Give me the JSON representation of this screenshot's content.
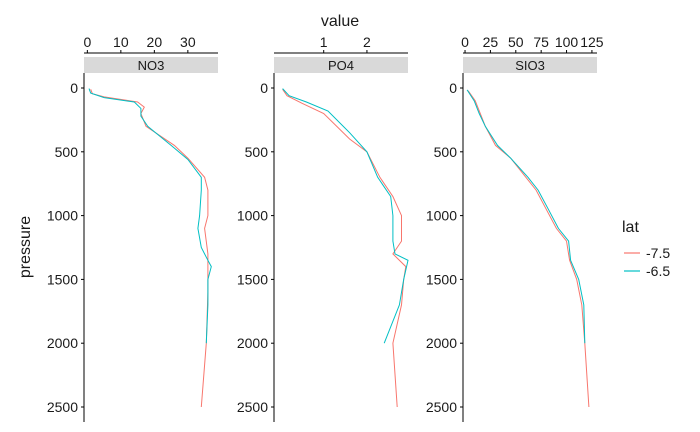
{
  "chart_data": {
    "type": "line",
    "title": "",
    "xlabel": "value",
    "ylabel": "pressure",
    "y_reversed": true,
    "ylim": [
      0,
      2500
    ],
    "yticks": [
      0,
      500,
      1000,
      1500,
      2000,
      2500
    ],
    "colors": {
      "-7.5": "#F8766D",
      "-6.5": "#00BFC4",
      "strip_bg": "#D9D9D9",
      "axis": "#000000"
    },
    "legend": {
      "title": "lat",
      "position": "right",
      "entries": [
        "-7.5",
        "-6.5"
      ]
    },
    "panels": [
      {
        "name": "NO3",
        "xlim": [
          -1,
          39
        ],
        "xticks": [
          0,
          10,
          20,
          30
        ],
        "series": [
          {
            "name": "-7.5",
            "points": [
              [
                1,
                10
              ],
              [
                1.5,
                45
              ],
              [
                5,
                70
              ],
              [
                15,
                110
              ],
              [
                17,
                150
              ],
              [
                16,
                200
              ],
              [
                17.5,
                300
              ],
              [
                26,
                450
              ],
              [
                30,
                550
              ],
              [
                35,
                700
              ],
              [
                36,
                800
              ],
              [
                36,
                1000
              ],
              [
                35,
                1100
              ],
              [
                36,
                1300
              ],
              [
                36,
                1450
              ],
              [
                36,
                1600
              ],
              [
                35.5,
                2000
              ],
              [
                34,
                2500
              ]
            ]
          },
          {
            "name": "-6.5",
            "points": [
              [
                0.5,
                5
              ],
              [
                1,
                40
              ],
              [
                5,
                75
              ],
              [
                14,
                110
              ],
              [
                16,
                160
              ],
              [
                16,
                220
              ],
              [
                18,
                300
              ],
              [
                25,
                450
              ],
              [
                30,
                560
              ],
              [
                34,
                700
              ],
              [
                34,
                800
              ],
              [
                33.5,
                1000
              ],
              [
                33,
                1100
              ],
              [
                34,
                1250
              ],
              [
                36,
                1350
              ],
              [
                37,
                1400
              ],
              [
                36,
                1500
              ],
              [
                36,
                1700
              ],
              [
                35.5,
                2000
              ]
            ]
          }
        ]
      },
      {
        "name": "PO4",
        "xlim": [
          -0.15,
          2.95
        ],
        "xticks": [
          1,
          2
        ],
        "series": [
          {
            "name": "-7.5",
            "points": [
              [
                0.05,
                10
              ],
              [
                0.15,
                60
              ],
              [
                0.5,
                120
              ],
              [
                1,
                200
              ],
              [
                1.6,
                400
              ],
              [
                2,
                500
              ],
              [
                2.3,
                700
              ],
              [
                2.6,
                850
              ],
              [
                2.8,
                1000
              ],
              [
                2.8,
                1200
              ],
              [
                2.6,
                1300
              ],
              [
                2.9,
                1400
              ],
              [
                2.85,
                1500
              ],
              [
                2.8,
                1700
              ],
              [
                2.6,
                2000
              ],
              [
                2.7,
                2500
              ]
            ]
          },
          {
            "name": "-6.5",
            "points": [
              [
                0.05,
                5
              ],
              [
                0.2,
                60
              ],
              [
                0.6,
                110
              ],
              [
                1.1,
                180
              ],
              [
                1.6,
                350
              ],
              [
                2,
                500
              ],
              [
                2.25,
                700
              ],
              [
                2.55,
                850
              ],
              [
                2.6,
                1000
              ],
              [
                2.6,
                1200
              ],
              [
                2.65,
                1300
              ],
              [
                2.95,
                1350
              ],
              [
                2.85,
                1500
              ],
              [
                2.75,
                1700
              ],
              [
                2.4,
                2000
              ]
            ]
          }
        ]
      },
      {
        "name": "SIO3",
        "xlim": [
          -2,
          130
        ],
        "xticks": [
          0,
          25,
          50,
          75,
          100,
          125
        ],
        "series": [
          {
            "name": "-7.5",
            "points": [
              [
                3,
                20
              ],
              [
                10,
                100
              ],
              [
                15,
                200
              ],
              [
                20,
                300
              ],
              [
                30,
                450
              ],
              [
                45,
                550
              ],
              [
                60,
                700
              ],
              [
                70,
                800
              ],
              [
                80,
                950
              ],
              [
                90,
                1100
              ],
              [
                100,
                1200
              ],
              [
                103,
                1350
              ],
              [
                110,
                1500
              ],
              [
                115,
                1700
              ],
              [
                118,
                2000
              ],
              [
                122,
                2500
              ]
            ]
          },
          {
            "name": "-6.5",
            "points": [
              [
                2,
                15
              ],
              [
                9,
                100
              ],
              [
                14,
                200
              ],
              [
                20,
                300
              ],
              [
                32,
                450
              ],
              [
                45,
                550
              ],
              [
                62,
                700
              ],
              [
                72,
                800
              ],
              [
                82,
                950
              ],
              [
                92,
                1100
              ],
              [
                102,
                1200
              ],
              [
                104,
                1350
              ],
              [
                112,
                1500
              ],
              [
                117,
                1700
              ],
              [
                118,
                2000
              ]
            ]
          }
        ]
      }
    ]
  }
}
